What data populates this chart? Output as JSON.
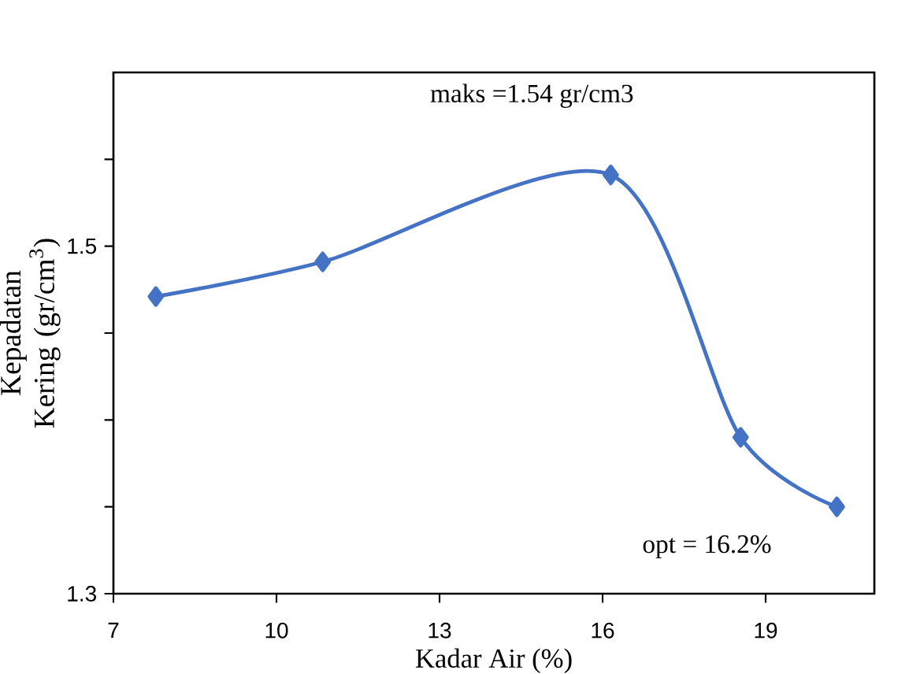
{
  "chart_data": {
    "type": "line",
    "xlabel": "Kadar Air (%)",
    "ylabel": "Kepadatan Kering (gr/cm$^{3}$)",
    "x": [
      7.78,
      10.85,
      16.15,
      18.54,
      20.31
    ],
    "series": [
      {
        "color": "#4472c4",
        "values": [
          1.471,
          1.491,
          1.541,
          1.39,
          1.35
        ]
      }
    ],
    "xlim": [
      7,
      21
    ],
    "xticks": [
      7,
      10,
      13,
      16,
      19
    ],
    "ylim": [
      1.3,
      1.6
    ],
    "yticks": [
      1.3,
      {
        "value": 1.35,
        "label": null
      },
      {
        "value": 1.4,
        "label": null
      },
      {
        "value": 1.45,
        "label": null
      },
      1.5,
      {
        "value": 1.55,
        "label": null
      }
    ],
    "annotations": [
      "maks =1.54 gr/cm3",
      "opt = 16.2%"
    ],
    "marker": "diamond",
    "line_style": "solid",
    "grid": false
  }
}
